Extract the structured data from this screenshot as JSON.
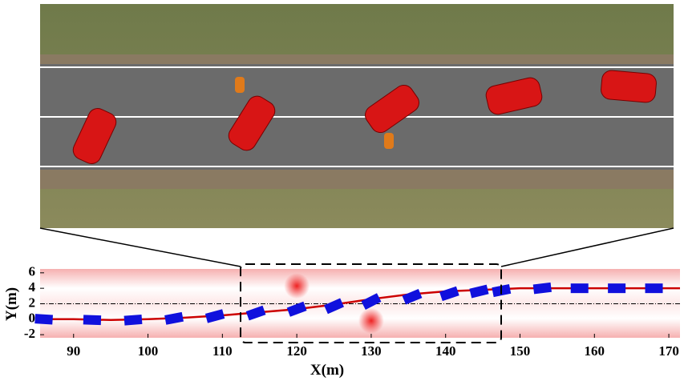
{
  "chart_data": {
    "type": "line",
    "x_label": "X(m)",
    "y_label": "Y(m)",
    "xlim": [
      85.5,
      171.5
    ],
    "ylim": [
      -2.4,
      6.5
    ],
    "xticks": [
      90,
      100,
      110,
      120,
      130,
      140,
      150,
      160,
      170
    ],
    "yticks": [
      -2,
      0,
      2,
      4,
      6
    ],
    "reference_line": 2,
    "color": "#cc0000",
    "x": [
      85.5,
      90,
      95,
      100,
      105,
      110,
      115,
      120,
      125,
      130,
      135,
      140,
      145,
      150,
      155,
      160,
      165,
      171.5
    ],
    "values": [
      0,
      0,
      -0.1,
      0,
      0.2,
      0.5,
      0.9,
      1.3,
      1.9,
      2.6,
      3.2,
      3.6,
      3.8,
      4.0,
      4.0,
      4.0,
      4.0,
      4.0
    ],
    "vehicles": {
      "color": "#1010dd",
      "x": [
        86,
        92.5,
        98,
        103.5,
        109,
        114.5,
        120,
        125,
        130,
        135.5,
        140.5,
        144.5,
        147.5,
        153,
        158,
        163,
        168
      ],
      "y": [
        0,
        -0.1,
        -0.1,
        0.1,
        0.4,
        0.8,
        1.3,
        1.7,
        2.3,
        2.9,
        3.3,
        3.6,
        3.7,
        4.0,
        4.0,
        4.0,
        4.0
      ]
    },
    "obstacles": {
      "color": "#ee2222",
      "x": [
        120,
        130
      ],
      "y": [
        4.3,
        -0.2
      ]
    }
  }
}
